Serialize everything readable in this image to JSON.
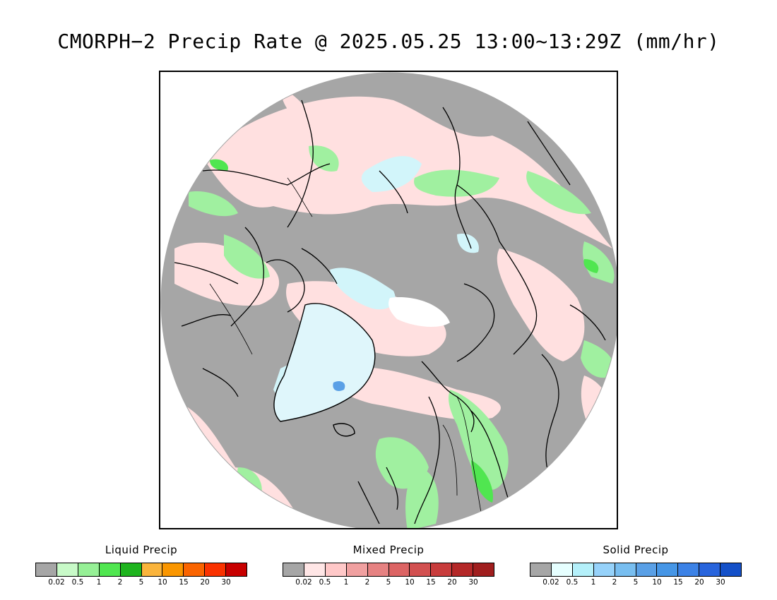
{
  "title": "CMORPH−2 Precip Rate @ 2025.05.25 13:00~13:29Z (mm/hr)",
  "colors": {
    "no_precip": "#a6a6a6",
    "land_outline": "#000000",
    "frame": "#000000"
  },
  "legends": [
    {
      "title": "Liquid Precip",
      "colors": [
        "#a6a6a6",
        "#c8fac8",
        "#96f096",
        "#50e650",
        "#1eb41e",
        "#fab43c",
        "#fa9600",
        "#fa6400",
        "#fa3200",
        "#c80000"
      ],
      "ticks": [
        "0.02",
        "0.5",
        "1",
        "2",
        "5",
        "10",
        "15",
        "20",
        "30"
      ]
    },
    {
      "title": "Mixed Precip",
      "colors": [
        "#a6a6a6",
        "#ffe6e6",
        "#ffc8c8",
        "#f0a0a0",
        "#e68282",
        "#dc6464",
        "#d25050",
        "#c83c3c",
        "#b42828",
        "#a01e1e"
      ],
      "ticks": [
        "0.02",
        "0.5",
        "1",
        "2",
        "5",
        "10",
        "15",
        "20",
        "30"
      ]
    },
    {
      "title": "Solid Precip",
      "colors": [
        "#a6a6a6",
        "#e6ffff",
        "#b4f0fa",
        "#96d2fa",
        "#78bef0",
        "#5aa0e6",
        "#4696e6",
        "#3c82e6",
        "#2864dc",
        "#1450c8"
      ],
      "ticks": [
        "0.02",
        "0.5",
        "1",
        "2",
        "5",
        "10",
        "15",
        "20",
        "30"
      ]
    }
  ]
}
